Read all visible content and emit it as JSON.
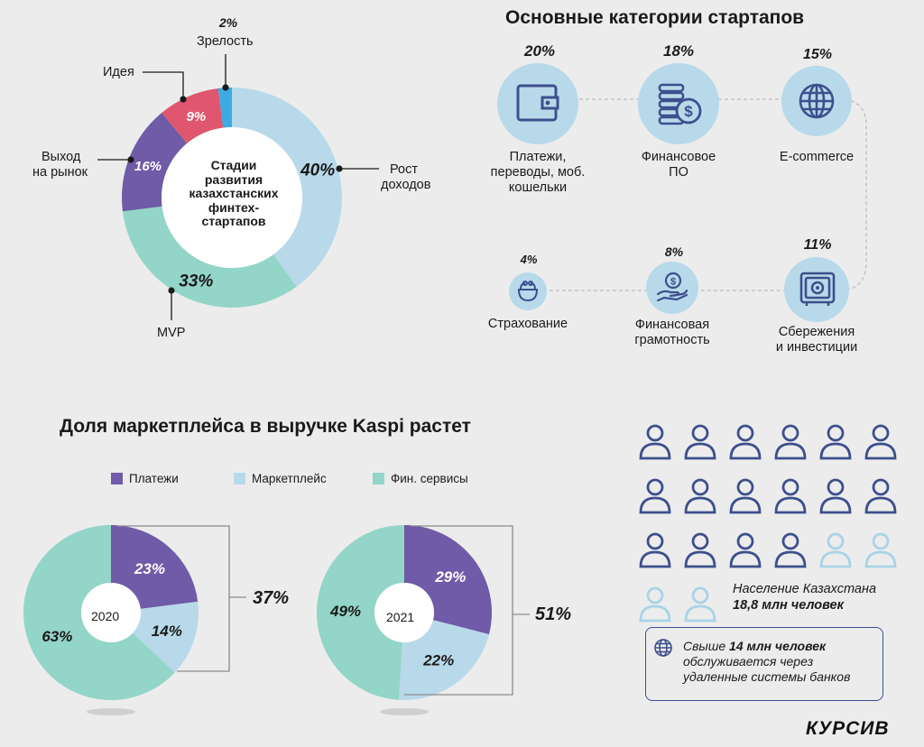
{
  "stages": {
    "center_lines": [
      "Стадии",
      "развития",
      "казахстанских",
      "финтех-",
      "стартапов"
    ],
    "chart_data": {
      "type": "pie",
      "title": "Стадии развития казахстанских финтех-стартапов",
      "labels": [
        "Рост доходов",
        "MVP",
        "Выход на рынок",
        "Идея",
        "Зрелость"
      ],
      "values": [
        40,
        33,
        16,
        9,
        2
      ],
      "value_labels": [
        "40%",
        "33%",
        "16%",
        "9%",
        "2%"
      ],
      "colors": [
        "#b8d9ea",
        "#93d5c8",
        "#6f5ba7",
        "#e0566f",
        "#3fa9e1"
      ]
    },
    "callouts": {
      "growth": [
        "Рост",
        "доходов"
      ],
      "mvp": "MVP",
      "market": [
        "Выход",
        "на рынок"
      ],
      "idea": "Идея",
      "maturity_pct": "2%",
      "maturity": "Зрелость"
    }
  },
  "categories": {
    "title": "Основные категории стартапов",
    "items": [
      {
        "pct": "20%",
        "label": [
          "Платежи,",
          "переводы, моб.",
          "кошельки"
        ],
        "icon": "wallet-icon"
      },
      {
        "pct": "18%",
        "label": [
          "Финансовое",
          "ПО"
        ],
        "icon": "coins-dollar-icon"
      },
      {
        "pct": "15%",
        "label": [
          "E-commerce"
        ],
        "icon": "globe-icon"
      },
      {
        "pct": "11%",
        "label": [
          "Сбережения",
          "и инвестиции"
        ],
        "icon": "safe-icon"
      },
      {
        "pct": "8%",
        "label": [
          "Финансовая",
          "грамотность"
        ],
        "icon": "hand-coin-icon"
      },
      {
        "pct": "4%",
        "label": [
          "Страхование"
        ],
        "icon": "purse-icon"
      }
    ],
    "chart_data": {
      "type": "bar",
      "title": "Основные категории стартапов",
      "categories": [
        "Платежи, переводы, моб. кошельки",
        "Финансовое ПО",
        "E-commerce",
        "Сбережения и инвестиции",
        "Финансовая грамотность",
        "Страхование"
      ],
      "values": [
        20,
        18,
        15,
        11,
        8,
        4
      ]
    }
  },
  "kaspi": {
    "title": "Доля маркетплейса в выручке Kaspi растет",
    "legend": [
      {
        "name": "Платежи",
        "color": "#6f5ba7"
      },
      {
        "name": "Маркетплейс",
        "color": "#b8d9ea"
      },
      {
        "name": "Фин. сервисы",
        "color": "#93d5c8"
      }
    ],
    "chart_data": [
      {
        "type": "pie",
        "year": "2020",
        "labels": [
          "Платежи",
          "Маркетплейс",
          "Фин. сервисы"
        ],
        "values": [
          23,
          14,
          63
        ],
        "value_labels": [
          "23%",
          "14%",
          "63%"
        ],
        "bracket_total": "37%"
      },
      {
        "type": "pie",
        "year": "2021",
        "labels": [
          "Платежи",
          "Маркетплейс",
          "Фин. сервисы"
        ],
        "values": [
          29,
          22,
          49
        ],
        "value_labels": [
          "29%",
          "22%",
          "49%"
        ],
        "bracket_total": "51%"
      }
    ]
  },
  "population": {
    "icons_total": 20,
    "icons_filled": 16,
    "line1": "Население Казахстана",
    "line2": "18,8 млн человек",
    "note_bold": "14 млн человек",
    "note_pre": "Свыше ",
    "note_line2": "обслуживается через",
    "note_line3": "удаленные системы банков",
    "colors": {
      "filled": "#3d4f8c",
      "empty": "#a9d3e6"
    }
  },
  "brand": "КУРСИВ"
}
